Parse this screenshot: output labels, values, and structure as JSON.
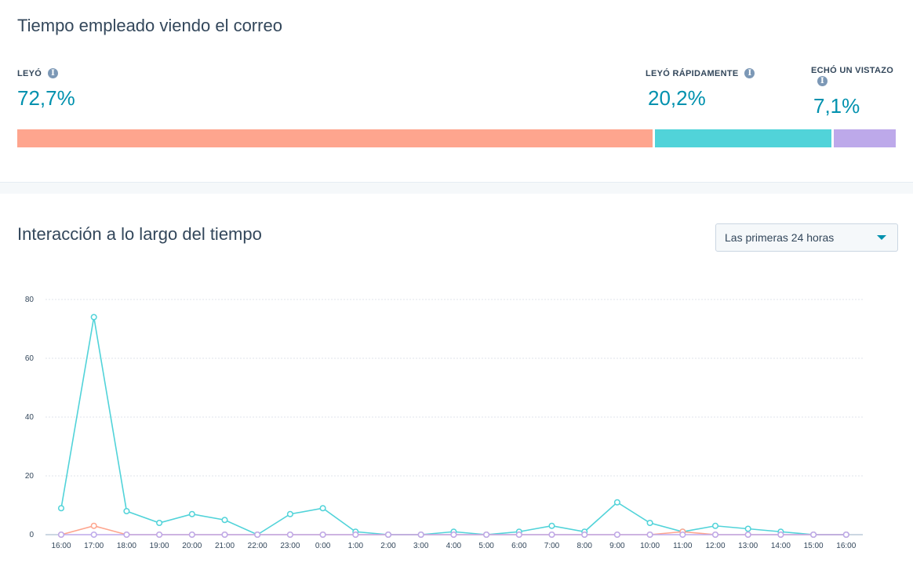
{
  "time_section": {
    "title": "Tiempo empleado viendo el correo",
    "stats": [
      {
        "label": "LEYÓ",
        "value": "72,7%",
        "fraction": 0.727,
        "color": "#fea58e"
      },
      {
        "label": "LEYÓ RÁPIDAMENTE",
        "value": "20,2%",
        "fraction": 0.202,
        "color": "#51d3d9"
      },
      {
        "label": "ECHÓ UN VISTAZO",
        "value": "7,1%",
        "fraction": 0.071,
        "color": "#bda9ea"
      }
    ],
    "info_icon": "info-icon"
  },
  "interaction_section": {
    "title": "Interacción a lo largo del tiempo",
    "dropdown": {
      "selected": "Las primeras 24 horas",
      "icon": "caret-down-icon"
    }
  },
  "chart_data": {
    "type": "line",
    "title": "",
    "xlabel": "",
    "ylabel": "",
    "ylim": [
      0,
      80
    ],
    "yticks": [
      0,
      20,
      40,
      60,
      80
    ],
    "grid": true,
    "categories": [
      "16:00",
      "17:00",
      "18:00",
      "19:00",
      "20:00",
      "21:00",
      "22:00",
      "23:00",
      "0:00",
      "1:00",
      "2:00",
      "3:00",
      "4:00",
      "5:00",
      "6:00",
      "7:00",
      "8:00",
      "9:00",
      "10:00",
      "11:00",
      "12:00",
      "13:00",
      "14:00",
      "15:00",
      "16:00"
    ],
    "series": [
      {
        "color": "#51d3d9",
        "values": [
          9,
          74,
          8,
          4,
          7,
          5,
          0,
          7,
          9,
          1,
          0,
          0,
          1,
          0,
          1,
          3,
          1,
          11,
          4,
          1,
          3,
          2,
          1,
          0,
          0
        ]
      },
      {
        "color": "#fea58e",
        "values": [
          0,
          3,
          0,
          0,
          0,
          0,
          0,
          0,
          0,
          0,
          0,
          0,
          0,
          0,
          0,
          0,
          0,
          0,
          0,
          1,
          0,
          0,
          0,
          0,
          0
        ]
      },
      {
        "color": "#bda9ea",
        "values": [
          0,
          0,
          0,
          0,
          0,
          0,
          0,
          0,
          0,
          0,
          0,
          0,
          0,
          0,
          0,
          0,
          0,
          0,
          0,
          0,
          0,
          0,
          0,
          0,
          0
        ]
      }
    ]
  }
}
